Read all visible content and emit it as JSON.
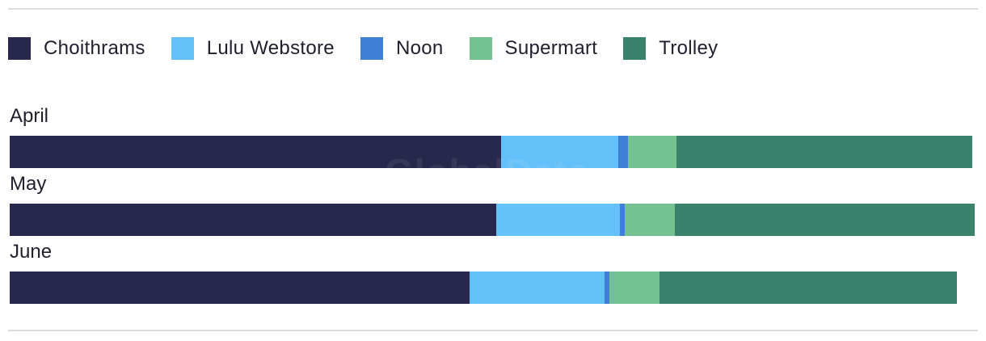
{
  "chart_data": {
    "type": "bar",
    "orientation": "horizontal",
    "stacked": true,
    "grid": false,
    "legend_position": "top-left",
    "categories": [
      "April",
      "May",
      "June"
    ],
    "series": [
      {
        "name": "Choithrams",
        "color": "#27284b",
        "values": [
          50.8,
          50.3,
          47.6
        ]
      },
      {
        "name": "Lulu Webstore",
        "color": "#63c0f8",
        "values": [
          12.2,
          12.8,
          13.9
        ]
      },
      {
        "name": "Noon",
        "color": "#3f7fd8",
        "values": [
          1.0,
          0.5,
          0.5
        ]
      },
      {
        "name": "Supermart",
        "color": "#74c28f",
        "values": [
          5.0,
          5.2,
          5.2
        ]
      },
      {
        "name": "Trolley",
        "color": "#3b826c",
        "values": [
          30.6,
          31.0,
          30.8
        ]
      }
    ]
  },
  "watermark": "GlobalData"
}
